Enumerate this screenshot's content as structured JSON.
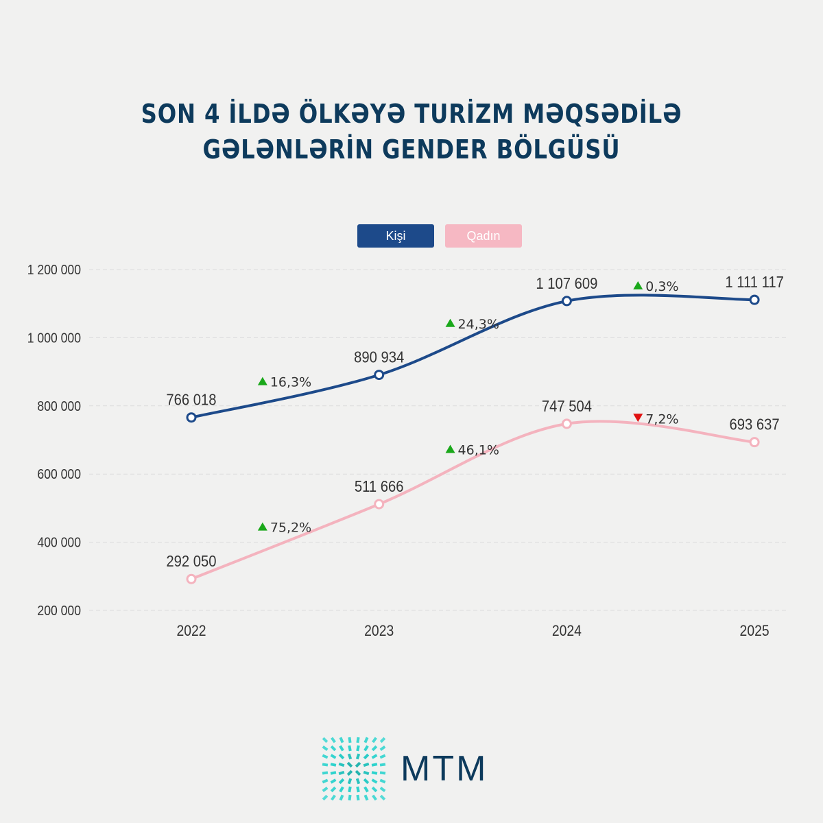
{
  "title_lines": [
    "SON 4 İLDƏ ÖLKƏYƏ TURİZM MƏQSƏDİLƏ",
    "GƏLƏNLƏRİN GENDER BÖLGÜSÜ"
  ],
  "logo_text": "MTM",
  "chart_data": {
    "type": "line",
    "title": "SON 4 İLDƏ ÖLKƏYƏ TURİZM MƏQSƏDİLƏ GƏLƏNLƏRİN GENDER BÖLGÜSÜ",
    "categories": [
      "2022",
      "2023",
      "2024",
      "2025"
    ],
    "ylim": [
      200000,
      1200000
    ],
    "yticks": [
      200000,
      400000,
      600000,
      800000,
      1000000,
      1200000
    ],
    "ytick_labels": [
      "200 000",
      "400 000",
      "600 000",
      "800 000",
      "1 000 000",
      "1 200 000"
    ],
    "grid": true,
    "legend_position": "top-center",
    "series": [
      {
        "name": "Kişi",
        "color": "#1d4a8a",
        "values": [
          766018,
          890934,
          1107609,
          1111117
        ],
        "labels": [
          "766 018",
          "890 934",
          "1 107 609",
          "1 111 117"
        ],
        "changes": [
          {
            "text": "16,3%",
            "dir": "up"
          },
          {
            "text": "24,3%",
            "dir": "up"
          },
          {
            "text": "0,3%",
            "dir": "up"
          }
        ]
      },
      {
        "name": "Qadın",
        "color": "#f4b3be",
        "values": [
          292050,
          511666,
          747504,
          693637
        ],
        "labels": [
          "292 050",
          "511 666",
          "747 504",
          "693 637"
        ],
        "changes": [
          {
            "text": "75,2%",
            "dir": "up"
          },
          {
            "text": "46,1%",
            "dir": "up"
          },
          {
            "text": "7,2%",
            "dir": "down"
          }
        ]
      }
    ],
    "up_color": "#1aa81a",
    "down_color": "#e01010"
  }
}
